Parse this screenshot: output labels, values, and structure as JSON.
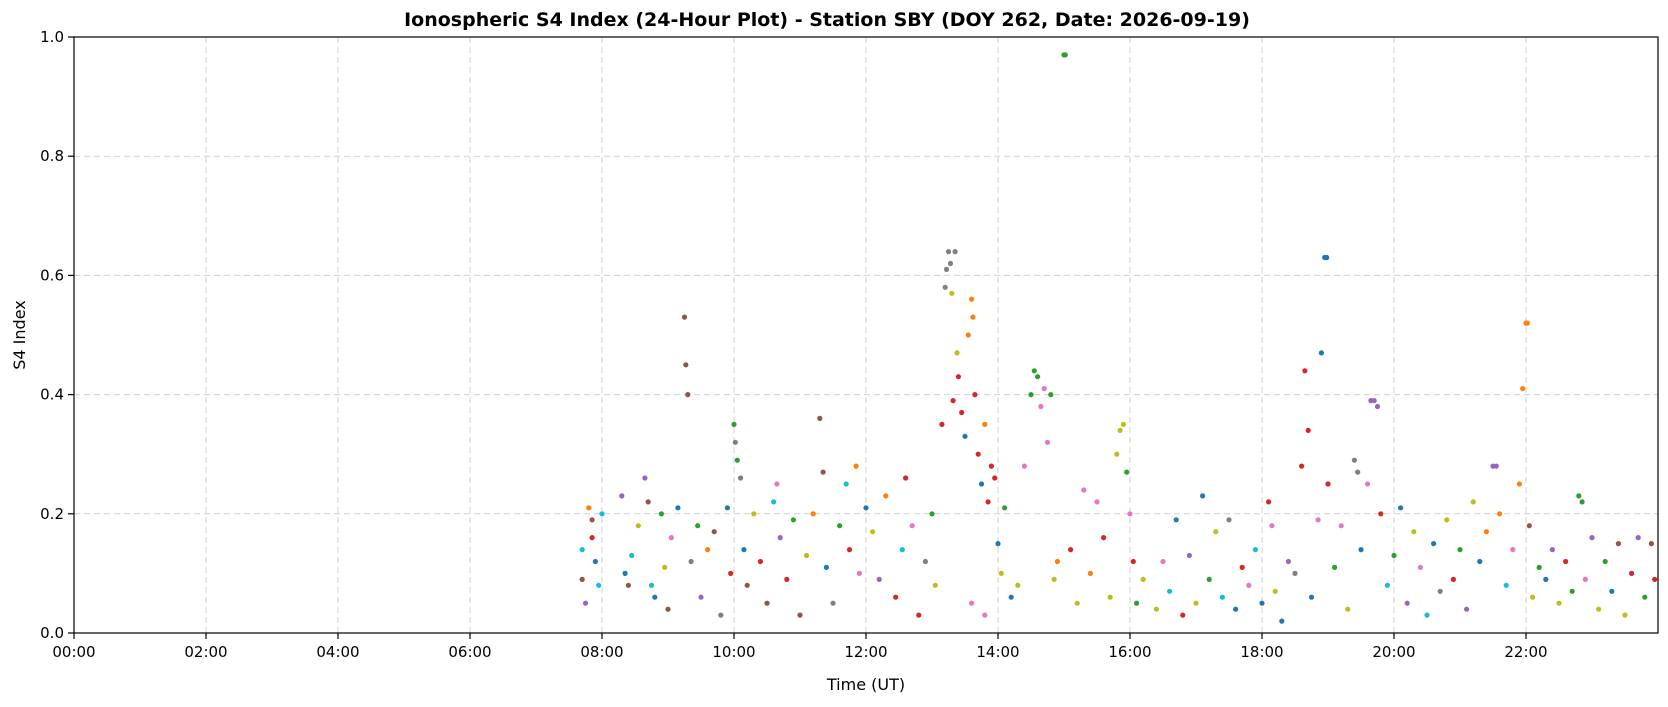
{
  "chart_data": {
    "type": "scatter",
    "title": "Ionospheric S4 Index (24-Hour Plot) - Station SBY (DOY 262, Date: 2026-09-19)",
    "xlabel": "Time (UT)",
    "ylabel": "S4 Index",
    "xlim_hours": [
      0,
      24
    ],
    "ylim": [
      0,
      1.0
    ],
    "grid": true,
    "x_ticks": [
      {
        "value": 0,
        "label": "00:00"
      },
      {
        "value": 2,
        "label": "02:00"
      },
      {
        "value": 4,
        "label": "04:00"
      },
      {
        "value": 6,
        "label": "06:00"
      },
      {
        "value": 8,
        "label": "08:00"
      },
      {
        "value": 10,
        "label": "10:00"
      },
      {
        "value": 12,
        "label": "12:00"
      },
      {
        "value": 14,
        "label": "14:00"
      },
      {
        "value": 16,
        "label": "16:00"
      },
      {
        "value": 18,
        "label": "18:00"
      },
      {
        "value": 20,
        "label": "20:00"
      },
      {
        "value": 22,
        "label": "22:00"
      }
    ],
    "y_ticks": [
      {
        "value": 0.0,
        "label": "0.0"
      },
      {
        "value": 0.2,
        "label": "0.2"
      },
      {
        "value": 0.4,
        "label": "0.4"
      },
      {
        "value": 0.6,
        "label": "0.6"
      },
      {
        "value": 0.8,
        "label": "0.8"
      },
      {
        "value": 1.0,
        "label": "1.0"
      }
    ],
    "palette": [
      "#1f77b4",
      "#ff7f0e",
      "#2ca02c",
      "#d62728",
      "#9467bd",
      "#8c564b",
      "#e377c2",
      "#7f7f7f",
      "#bcbd22",
      "#17becf"
    ],
    "points": [
      [
        7.7,
        0.14,
        9
      ],
      [
        7.75,
        0.05,
        4
      ],
      [
        7.8,
        0.21,
        1
      ],
      [
        7.85,
        0.19,
        5
      ],
      [
        7.9,
        0.12,
        0
      ],
      [
        7.95,
        0.08,
        9
      ],
      [
        8.0,
        0.2,
        9
      ],
      [
        7.7,
        0.09,
        5
      ],
      [
        7.85,
        0.16,
        3
      ],
      [
        8.3,
        0.23,
        4
      ],
      [
        8.35,
        0.1,
        0
      ],
      [
        8.4,
        0.08,
        5
      ],
      [
        8.45,
        0.13,
        9
      ],
      [
        8.55,
        0.18,
        8
      ],
      [
        8.65,
        0.26,
        4
      ],
      [
        8.7,
        0.22,
        5
      ],
      [
        8.75,
        0.08,
        9
      ],
      [
        8.8,
        0.06,
        0
      ],
      [
        8.9,
        0.2,
        2
      ],
      [
        8.95,
        0.11,
        8
      ],
      [
        9.0,
        0.04,
        5
      ],
      [
        9.05,
        0.16,
        6
      ],
      [
        9.15,
        0.21,
        0
      ],
      [
        9.25,
        0.53,
        5
      ],
      [
        9.27,
        0.45,
        5
      ],
      [
        9.3,
        0.4,
        5
      ],
      [
        9.35,
        0.12,
        7
      ],
      [
        9.45,
        0.18,
        2
      ],
      [
        9.5,
        0.06,
        4
      ],
      [
        9.6,
        0.14,
        1
      ],
      [
        9.7,
        0.17,
        5
      ],
      [
        9.8,
        0.03,
        7
      ],
      [
        9.9,
        0.21,
        0
      ],
      [
        9.95,
        0.1,
        3
      ],
      [
        10.0,
        0.35,
        2
      ],
      [
        10.02,
        0.32,
        7
      ],
      [
        10.05,
        0.29,
        2
      ],
      [
        10.1,
        0.26,
        7
      ],
      [
        10.15,
        0.14,
        0
      ],
      [
        10.2,
        0.08,
        5
      ],
      [
        10.3,
        0.2,
        8
      ],
      [
        10.4,
        0.12,
        3
      ],
      [
        10.5,
        0.05,
        5
      ],
      [
        10.6,
        0.22,
        9
      ],
      [
        10.65,
        0.25,
        6
      ],
      [
        10.7,
        0.16,
        4
      ],
      [
        10.8,
        0.09,
        3
      ],
      [
        10.9,
        0.19,
        2
      ],
      [
        11.0,
        0.03,
        5
      ],
      [
        11.1,
        0.13,
        8
      ],
      [
        11.2,
        0.2,
        1
      ],
      [
        11.3,
        0.36,
        5
      ],
      [
        11.35,
        0.27,
        5
      ],
      [
        11.4,
        0.11,
        0
      ],
      [
        11.5,
        0.05,
        7
      ],
      [
        11.6,
        0.18,
        2
      ],
      [
        11.7,
        0.25,
        9
      ],
      [
        11.75,
        0.14,
        3
      ],
      [
        11.85,
        0.28,
        1
      ],
      [
        11.9,
        0.1,
        6
      ],
      [
        12.0,
        0.21,
        0
      ],
      [
        12.1,
        0.17,
        8
      ],
      [
        12.2,
        0.09,
        4
      ],
      [
        12.3,
        0.23,
        1
      ],
      [
        12.45,
        0.06,
        3
      ],
      [
        12.55,
        0.14,
        9
      ],
      [
        12.6,
        0.26,
        3
      ],
      [
        12.7,
        0.18,
        6
      ],
      [
        12.8,
        0.03,
        3
      ],
      [
        12.9,
        0.12,
        7
      ],
      [
        13.0,
        0.2,
        2
      ],
      [
        13.05,
        0.08,
        8
      ],
      [
        13.15,
        0.35,
        3
      ],
      [
        13.2,
        0.58,
        7
      ],
      [
        13.22,
        0.61,
        7
      ],
      [
        13.25,
        0.64,
        7
      ],
      [
        13.28,
        0.62,
        7
      ],
      [
        13.3,
        0.57,
        8
      ],
      [
        13.32,
        0.39,
        3
      ],
      [
        13.35,
        0.64,
        7
      ],
      [
        13.38,
        0.47,
        8
      ],
      [
        13.4,
        0.43,
        3
      ],
      [
        13.45,
        0.37,
        3
      ],
      [
        13.5,
        0.33,
        0
      ],
      [
        13.55,
        0.5,
        1
      ],
      [
        13.6,
        0.56,
        1
      ],
      [
        13.62,
        0.53,
        1
      ],
      [
        13.65,
        0.4,
        3
      ],
      [
        13.7,
        0.3,
        3
      ],
      [
        13.75,
        0.25,
        0
      ],
      [
        13.8,
        0.35,
        1
      ],
      [
        13.85,
        0.22,
        3
      ],
      [
        13.9,
        0.28,
        3
      ],
      [
        13.95,
        0.26,
        3
      ],
      [
        14.0,
        0.15,
        0
      ],
      [
        13.6,
        0.05,
        6
      ],
      [
        13.8,
        0.03,
        6
      ],
      [
        14.05,
        0.1,
        8
      ],
      [
        14.1,
        0.21,
        2
      ],
      [
        14.2,
        0.06,
        0
      ],
      [
        14.3,
        0.08,
        8
      ],
      [
        14.4,
        0.28,
        6
      ],
      [
        14.5,
        0.4,
        2
      ],
      [
        14.55,
        0.44,
        2
      ],
      [
        14.6,
        0.43,
        2
      ],
      [
        14.65,
        0.38,
        6
      ],
      [
        14.7,
        0.41,
        6
      ],
      [
        14.75,
        0.32,
        6
      ],
      [
        14.8,
        0.4,
        2
      ],
      [
        14.85,
        0.09,
        8
      ],
      [
        14.9,
        0.12,
        1
      ],
      [
        15.0,
        0.97,
        2
      ],
      [
        15.02,
        0.97,
        2
      ],
      [
        15.1,
        0.14,
        3
      ],
      [
        15.2,
        0.05,
        8
      ],
      [
        15.3,
        0.24,
        6
      ],
      [
        15.4,
        0.1,
        1
      ],
      [
        15.5,
        0.22,
        6
      ],
      [
        15.6,
        0.16,
        3
      ],
      [
        15.7,
        0.06,
        8
      ],
      [
        15.8,
        0.3,
        8
      ],
      [
        15.85,
        0.34,
        8
      ],
      [
        15.9,
        0.35,
        8
      ],
      [
        15.95,
        0.27,
        2
      ],
      [
        16.0,
        0.2,
        6
      ],
      [
        16.05,
        0.12,
        3
      ],
      [
        16.1,
        0.05,
        2
      ],
      [
        16.2,
        0.09,
        8
      ],
      [
        16.4,
        0.04,
        8
      ],
      [
        16.5,
        0.12,
        6
      ],
      [
        16.6,
        0.07,
        9
      ],
      [
        16.7,
        0.19,
        0
      ],
      [
        16.8,
        0.03,
        3
      ],
      [
        16.9,
        0.13,
        4
      ],
      [
        17.0,
        0.05,
        8
      ],
      [
        17.1,
        0.23,
        0
      ],
      [
        17.2,
        0.09,
        2
      ],
      [
        17.3,
        0.17,
        8
      ],
      [
        17.4,
        0.06,
        9
      ],
      [
        17.5,
        0.19,
        7
      ],
      [
        17.6,
        0.04,
        0
      ],
      [
        17.7,
        0.11,
        3
      ],
      [
        17.8,
        0.08,
        6
      ],
      [
        17.9,
        0.14,
        9
      ],
      [
        18.0,
        0.05,
        0
      ],
      [
        18.1,
        0.22,
        3
      ],
      [
        18.15,
        0.18,
        6
      ],
      [
        18.2,
        0.07,
        8
      ],
      [
        18.3,
        0.02,
        0
      ],
      [
        18.4,
        0.12,
        4
      ],
      [
        18.5,
        0.1,
        7
      ],
      [
        18.6,
        0.28,
        3
      ],
      [
        18.65,
        0.44,
        3
      ],
      [
        18.7,
        0.34,
        3
      ],
      [
        18.75,
        0.06,
        0
      ],
      [
        18.85,
        0.19,
        6
      ],
      [
        18.9,
        0.47,
        0
      ],
      [
        18.95,
        0.63,
        0
      ],
      [
        18.98,
        0.63,
        0
      ],
      [
        19.0,
        0.25,
        3
      ],
      [
        19.1,
        0.11,
        2
      ],
      [
        19.2,
        0.18,
        6
      ],
      [
        19.3,
        0.04,
        8
      ],
      [
        19.4,
        0.29,
        7
      ],
      [
        19.45,
        0.27,
        7
      ],
      [
        19.5,
        0.14,
        0
      ],
      [
        19.6,
        0.25,
        6
      ],
      [
        19.65,
        0.39,
        4
      ],
      [
        19.7,
        0.39,
        4
      ],
      [
        19.75,
        0.38,
        4
      ],
      [
        19.8,
        0.2,
        3
      ],
      [
        19.9,
        0.08,
        9
      ],
      [
        20.0,
        0.13,
        2
      ],
      [
        20.1,
        0.21,
        0
      ],
      [
        20.2,
        0.05,
        4
      ],
      [
        20.3,
        0.17,
        8
      ],
      [
        20.4,
        0.11,
        6
      ],
      [
        20.5,
        0.03,
        9
      ],
      [
        20.6,
        0.15,
        0
      ],
      [
        20.7,
        0.07,
        7
      ],
      [
        20.8,
        0.19,
        8
      ],
      [
        20.9,
        0.09,
        3
      ],
      [
        21.0,
        0.14,
        2
      ],
      [
        21.1,
        0.04,
        4
      ],
      [
        21.2,
        0.22,
        8
      ],
      [
        21.3,
        0.12,
        0
      ],
      [
        21.4,
        0.17,
        1
      ],
      [
        21.5,
        0.28,
        4
      ],
      [
        21.55,
        0.28,
        4
      ],
      [
        21.6,
        0.2,
        1
      ],
      [
        21.7,
        0.08,
        9
      ],
      [
        21.8,
        0.14,
        6
      ],
      [
        21.9,
        0.25,
        1
      ],
      [
        21.95,
        0.41,
        1
      ],
      [
        22.0,
        0.52,
        1
      ],
      [
        22.02,
        0.52,
        1
      ],
      [
        22.05,
        0.18,
        5
      ],
      [
        22.1,
        0.06,
        8
      ],
      [
        22.2,
        0.11,
        2
      ],
      [
        22.3,
        0.09,
        0
      ],
      [
        22.4,
        0.14,
        4
      ],
      [
        22.5,
        0.05,
        8
      ],
      [
        22.6,
        0.12,
        3
      ],
      [
        22.7,
        0.07,
        2
      ],
      [
        22.8,
        0.23,
        2
      ],
      [
        22.85,
        0.22,
        2
      ],
      [
        22.9,
        0.09,
        6
      ],
      [
        23.0,
        0.16,
        4
      ],
      [
        23.1,
        0.04,
        8
      ],
      [
        23.2,
        0.12,
        2
      ],
      [
        23.3,
        0.07,
        0
      ],
      [
        23.4,
        0.15,
        5
      ],
      [
        23.5,
        0.03,
        8
      ],
      [
        23.6,
        0.1,
        3
      ],
      [
        23.7,
        0.16,
        4
      ],
      [
        23.8,
        0.06,
        2
      ],
      [
        23.9,
        0.15,
        5
      ],
      [
        23.95,
        0.09,
        3
      ]
    ]
  }
}
